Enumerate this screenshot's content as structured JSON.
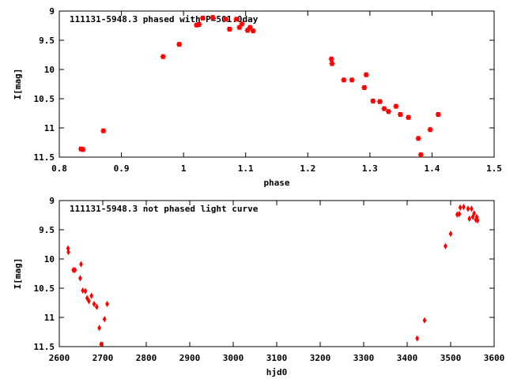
{
  "colors": {
    "points": "#ff0000",
    "axes": "#000000",
    "background": "#ffffff"
  },
  "chart_data": [
    {
      "type": "scatter",
      "title": "111131-5948.3 phased with P=501.0day",
      "xlabel": "phase",
      "ylabel": "I[mag]",
      "xlim": [
        0.8,
        1.5
      ],
      "ylim": [
        11.5,
        9
      ],
      "y_inverted": true,
      "grid": false,
      "xticks": [
        "0.8",
        "0.9",
        "1",
        "1.1",
        "1.2",
        "1.3",
        "1.4",
        "1.5"
      ],
      "yticks": [
        "9",
        "9.5",
        "10",
        "10.5",
        "11",
        "11.5"
      ],
      "marker": "filled-square-cross",
      "points": [
        [
          0.835,
          11.36
        ],
        [
          0.838,
          11.37
        ],
        [
          0.871,
          11.05
        ],
        [
          0.967,
          9.78
        ],
        [
          0.993,
          9.57
        ],
        [
          1.021,
          9.24
        ],
        [
          1.025,
          9.23
        ],
        [
          1.031,
          9.12
        ],
        [
          1.047,
          9.11
        ],
        [
          1.068,
          9.14
        ],
        [
          1.074,
          9.31
        ],
        [
          1.085,
          9.14
        ],
        [
          1.09,
          9.28
        ],
        [
          1.094,
          9.22
        ],
        [
          1.103,
          9.33
        ],
        [
          1.107,
          9.28
        ],
        [
          1.112,
          9.34
        ],
        [
          1.238,
          9.82
        ],
        [
          1.239,
          9.9
        ],
        [
          1.258,
          10.18
        ],
        [
          1.271,
          10.18
        ],
        [
          1.291,
          10.31
        ],
        [
          1.294,
          10.09
        ],
        [
          1.305,
          10.54
        ],
        [
          1.316,
          10.55
        ],
        [
          1.323,
          10.67
        ],
        [
          1.33,
          10.72
        ],
        [
          1.342,
          10.63
        ],
        [
          1.349,
          10.77
        ],
        [
          1.362,
          10.82
        ],
        [
          1.378,
          11.18
        ],
        [
          1.382,
          11.46
        ],
        [
          1.397,
          11.03
        ],
        [
          1.41,
          10.77
        ]
      ]
    },
    {
      "type": "scatter",
      "title": "111131-5948.3 not phased light curve",
      "xlabel": "hjd0",
      "ylabel": "I[mag]",
      "xlim": [
        2600,
        3600
      ],
      "ylim": [
        11.5,
        9
      ],
      "y_inverted": true,
      "grid": false,
      "xticks": [
        "2600",
        "2700",
        "2800",
        "2900",
        "3000",
        "3100",
        "3200",
        "3300",
        "3400",
        "3500",
        "3600"
      ],
      "yticks": [
        "9",
        "9.5",
        "10",
        "10.5",
        "11",
        "11.5"
      ],
      "marker": "small-diamond",
      "points": [
        [
          2620,
          9.82
        ],
        [
          2621,
          9.88
        ],
        [
          2632,
          10.19
        ],
        [
          2636,
          10.19
        ],
        [
          2648,
          10.33
        ],
        [
          2650,
          10.09
        ],
        [
          2654,
          10.54
        ],
        [
          2660,
          10.55
        ],
        [
          2664,
          10.67
        ],
        [
          2668,
          10.72
        ],
        [
          2674,
          10.63
        ],
        [
          2680,
          10.77
        ],
        [
          2686,
          10.82
        ],
        [
          2692,
          11.18
        ],
        [
          2696,
          11.46
        ],
        [
          2704,
          11.03
        ],
        [
          2710,
          10.77
        ],
        [
          3423,
          11.36
        ],
        [
          3440,
          11.05
        ],
        [
          3488,
          9.78
        ],
        [
          3500,
          9.57
        ],
        [
          3515,
          9.24
        ],
        [
          3520,
          9.23
        ],
        [
          3522,
          9.12
        ],
        [
          3530,
          9.11
        ],
        [
          3540,
          9.14
        ],
        [
          3543,
          9.31
        ],
        [
          3548,
          9.14
        ],
        [
          3551,
          9.28
        ],
        [
          3554,
          9.22
        ],
        [
          3558,
          9.33
        ],
        [
          3560,
          9.28
        ],
        [
          3562,
          9.34
        ]
      ]
    }
  ]
}
